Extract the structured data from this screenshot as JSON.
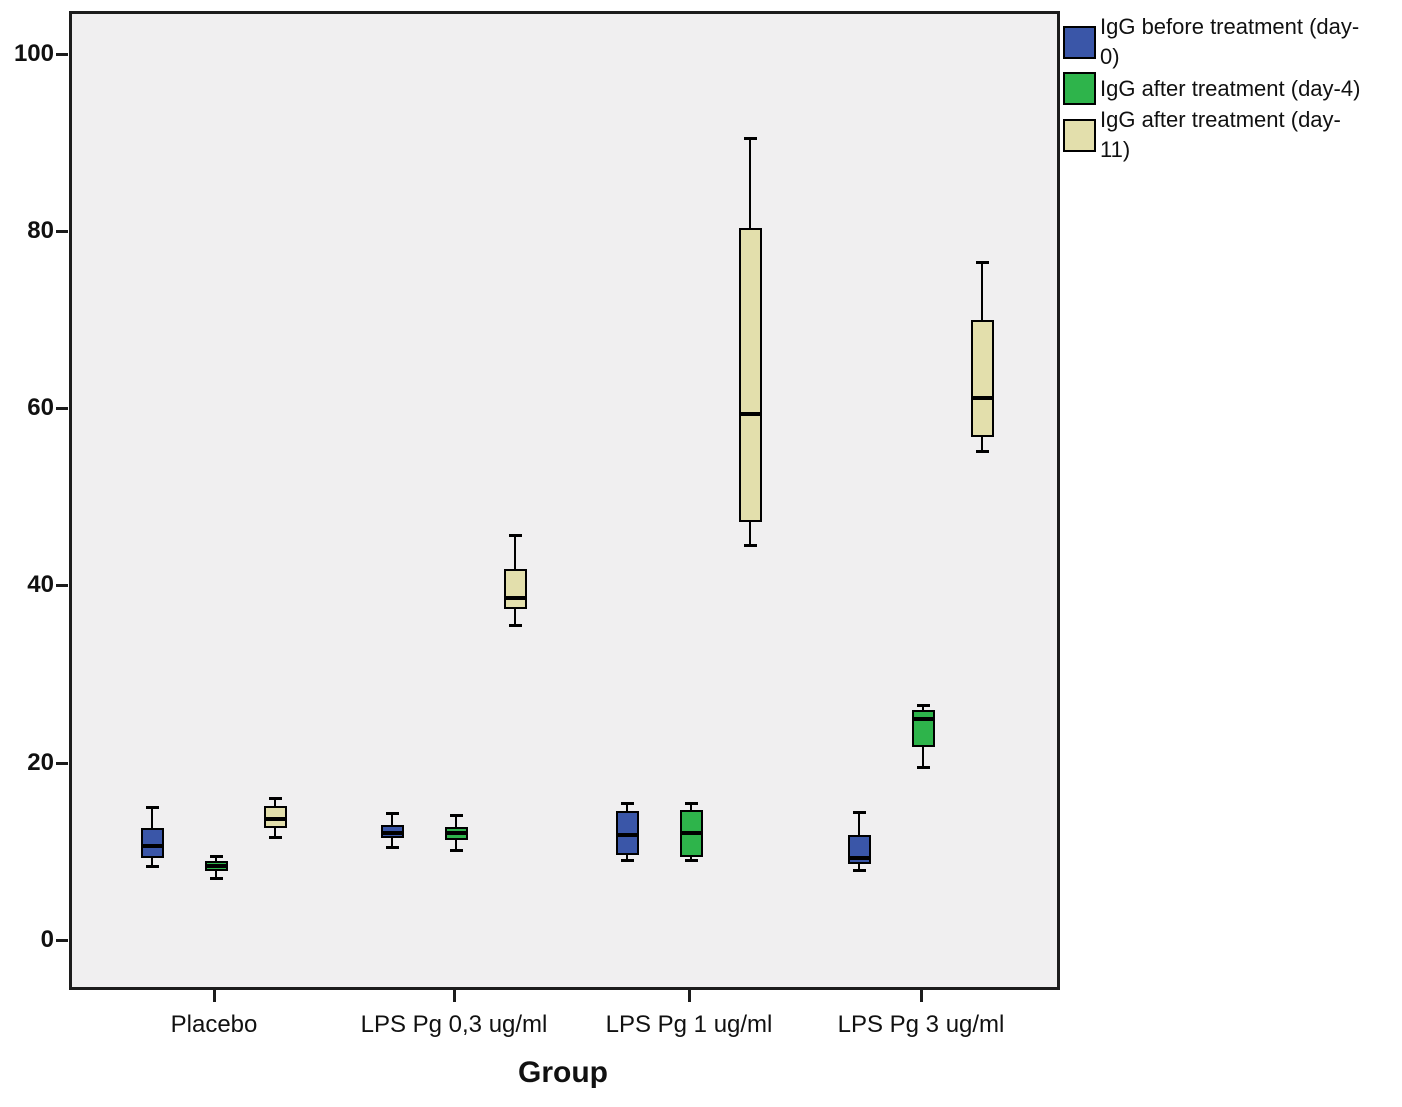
{
  "figure": {
    "background": "#ffffff",
    "plot_background": "#f0eff0",
    "frame_color": "#1c1c1c"
  },
  "chart_data": {
    "type": "boxplot",
    "title": "",
    "xlabel": "Group",
    "ylabel": "",
    "y_ticks": [
      0,
      20,
      40,
      60,
      80,
      100
    ],
    "ylim": [
      -5,
      105
    ],
    "grid": false,
    "legend_position": "top-right",
    "categories": [
      "Placebo",
      "LPS Pg 0,3 ug/ml",
      "LPS Pg 1 ug/ml",
      "LPS Pg 3 ug/ml"
    ],
    "series": [
      {
        "name": "IgG before treatment (day-0)",
        "label_lines": [
          "IgG before treatment (day-",
          "0)"
        ],
        "color": "#3a56a8",
        "boxes": [
          {
            "whisker_low": 8.4,
            "q1": 9.2,
            "median": 10.6,
            "q3": 12.6,
            "whisker_high": 15.0
          },
          {
            "whisker_low": 10.5,
            "q1": 11.5,
            "median": 12.1,
            "q3": 13.0,
            "whisker_high": 14.3
          },
          {
            "whisker_low": 9.0,
            "q1": 9.6,
            "median": 11.9,
            "q3": 14.6,
            "whisker_high": 15.5
          },
          {
            "whisker_low": 7.9,
            "q1": 8.6,
            "median": 9.3,
            "q3": 11.8,
            "whisker_high": 14.4
          }
        ]
      },
      {
        "name": "IgG after treatment (day-4)",
        "label_lines": [
          "IgG after treatment (day-4)"
        ],
        "color": "#2eb44b",
        "boxes": [
          {
            "whisker_low": 7.0,
            "q1": 7.8,
            "median": 8.3,
            "q3": 8.9,
            "whisker_high": 9.5
          },
          {
            "whisker_low": 10.2,
            "q1": 11.3,
            "median": 12.1,
            "q3": 12.8,
            "whisker_high": 14.1
          },
          {
            "whisker_low": 9.0,
            "q1": 9.4,
            "median": 12.1,
            "q3": 14.7,
            "whisker_high": 15.4
          },
          {
            "whisker_low": 19.5,
            "q1": 21.8,
            "median": 24.9,
            "q3": 25.9,
            "whisker_high": 26.5
          }
        ]
      },
      {
        "name": "IgG after treatment (day-11)",
        "label_lines": [
          "IgG after treatment (day-",
          "11)"
        ],
        "color": "#e3dfac",
        "boxes": [
          {
            "whisker_low": 11.6,
            "q1": 12.6,
            "median": 13.7,
            "q3": 15.1,
            "whisker_high": 16.0
          },
          {
            "whisker_low": 35.5,
            "q1": 37.3,
            "median": 38.6,
            "q3": 41.9,
            "whisker_high": 45.7
          },
          {
            "whisker_low": 44.6,
            "q1": 47.1,
            "median": 59.3,
            "q3": 80.3,
            "whisker_high": 90.5
          },
          {
            "whisker_low": 55.2,
            "q1": 56.7,
            "median": 61.1,
            "q3": 69.9,
            "whisker_high": 76.5
          }
        ]
      }
    ]
  }
}
